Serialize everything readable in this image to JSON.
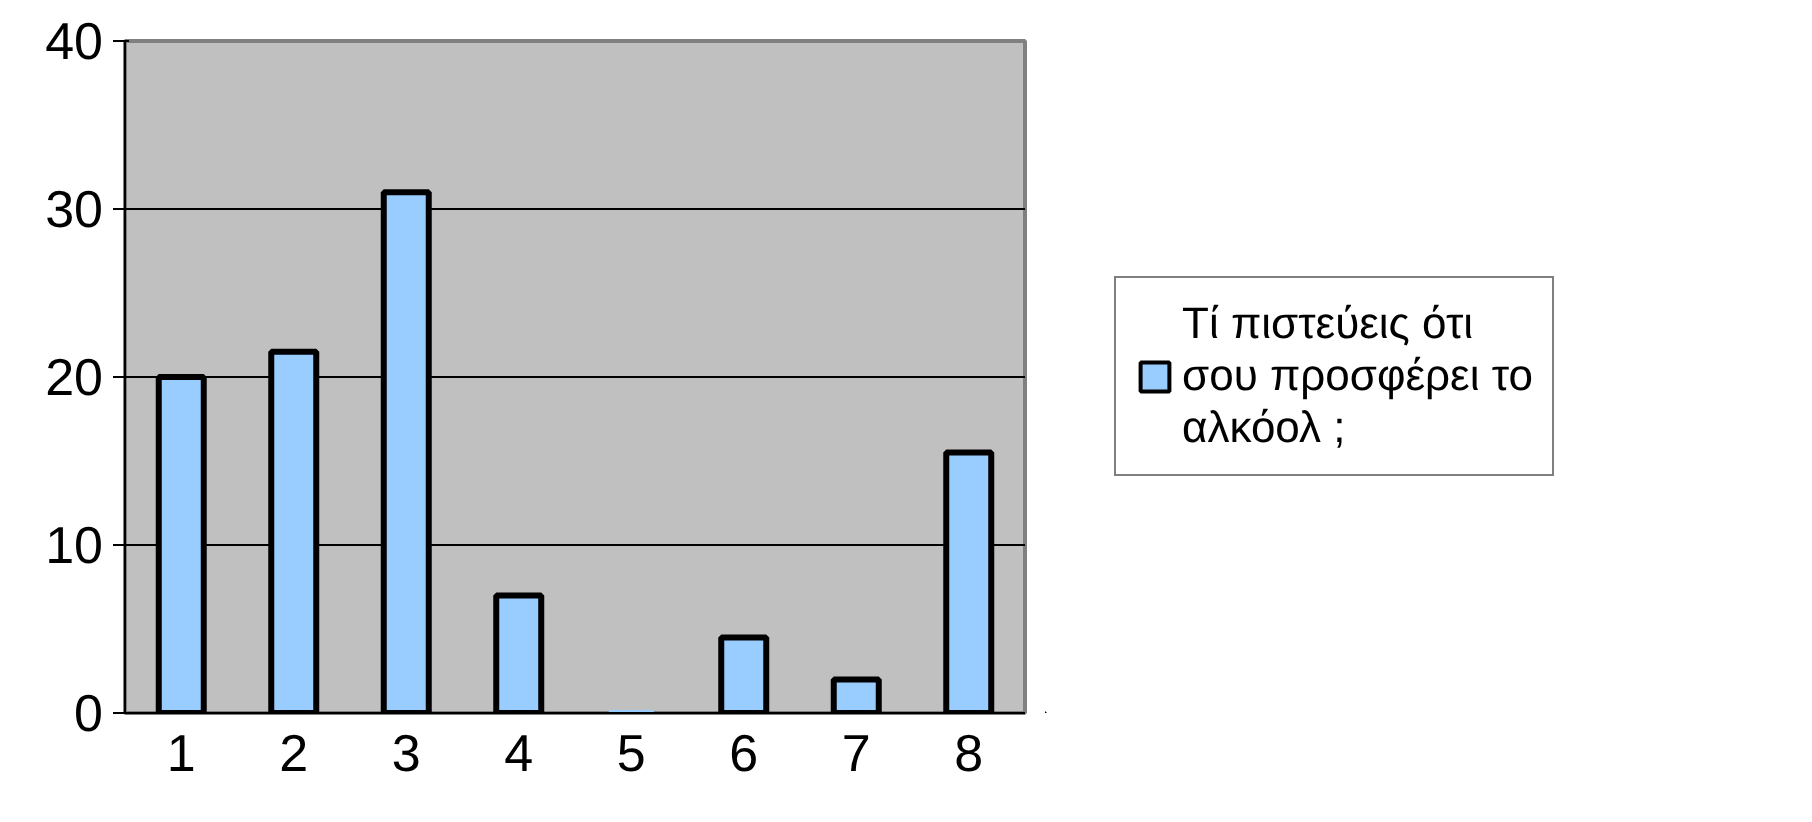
{
  "chart_data": {
    "type": "bar",
    "categories": [
      "1",
      "2",
      "3",
      "4",
      "5",
      "6",
      "7",
      "8"
    ],
    "series": [
      {
        "name": "Τί πιστεύεις ότι σου προσφέρει το αλκόολ ;",
        "color": "#99ccff",
        "values": [
          20,
          21.5,
          31,
          7,
          0,
          4.5,
          2,
          15.5
        ]
      }
    ],
    "ylim": [
      0,
      40
    ],
    "yticks": [
      0,
      10,
      20,
      30,
      40
    ],
    "grid": "y",
    "legend": "right"
  }
}
